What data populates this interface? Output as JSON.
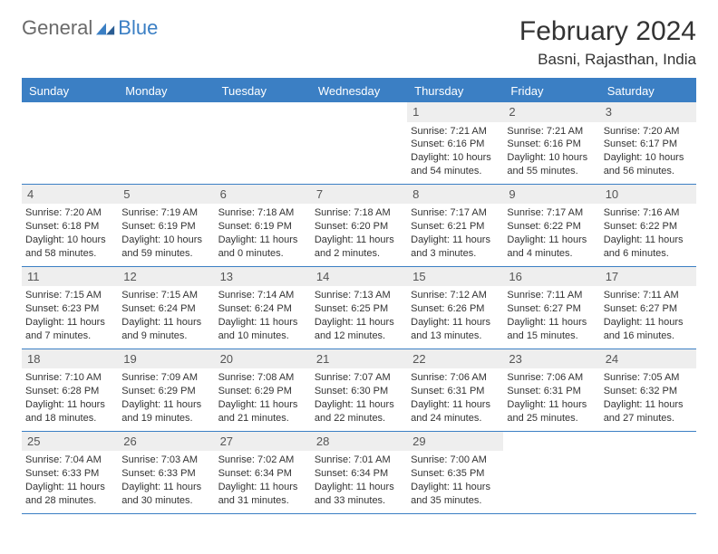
{
  "logo": {
    "part1": "General",
    "part2": "Blue"
  },
  "title": "February 2024",
  "location": "Basni, Rajasthan, India",
  "headers": [
    "Sunday",
    "Monday",
    "Tuesday",
    "Wednesday",
    "Thursday",
    "Friday",
    "Saturday"
  ],
  "colors": {
    "brand": "#3b7fc4",
    "gray": "#6a6a6a",
    "daybg": "#eeeeee"
  },
  "weeks": [
    [
      null,
      null,
      null,
      null,
      {
        "n": "1",
        "sr": "7:21 AM",
        "ss": "6:16 PM",
        "dl": "10 hours and 54 minutes."
      },
      {
        "n": "2",
        "sr": "7:21 AM",
        "ss": "6:16 PM",
        "dl": "10 hours and 55 minutes."
      },
      {
        "n": "3",
        "sr": "7:20 AM",
        "ss": "6:17 PM",
        "dl": "10 hours and 56 minutes."
      }
    ],
    [
      {
        "n": "4",
        "sr": "7:20 AM",
        "ss": "6:18 PM",
        "dl": "10 hours and 58 minutes."
      },
      {
        "n": "5",
        "sr": "7:19 AM",
        "ss": "6:19 PM",
        "dl": "10 hours and 59 minutes."
      },
      {
        "n": "6",
        "sr": "7:18 AM",
        "ss": "6:19 PM",
        "dl": "11 hours and 0 minutes."
      },
      {
        "n": "7",
        "sr": "7:18 AM",
        "ss": "6:20 PM",
        "dl": "11 hours and 2 minutes."
      },
      {
        "n": "8",
        "sr": "7:17 AM",
        "ss": "6:21 PM",
        "dl": "11 hours and 3 minutes."
      },
      {
        "n": "9",
        "sr": "7:17 AM",
        "ss": "6:22 PM",
        "dl": "11 hours and 4 minutes."
      },
      {
        "n": "10",
        "sr": "7:16 AM",
        "ss": "6:22 PM",
        "dl": "11 hours and 6 minutes."
      }
    ],
    [
      {
        "n": "11",
        "sr": "7:15 AM",
        "ss": "6:23 PM",
        "dl": "11 hours and 7 minutes."
      },
      {
        "n": "12",
        "sr": "7:15 AM",
        "ss": "6:24 PM",
        "dl": "11 hours and 9 minutes."
      },
      {
        "n": "13",
        "sr": "7:14 AM",
        "ss": "6:24 PM",
        "dl": "11 hours and 10 minutes."
      },
      {
        "n": "14",
        "sr": "7:13 AM",
        "ss": "6:25 PM",
        "dl": "11 hours and 12 minutes."
      },
      {
        "n": "15",
        "sr": "7:12 AM",
        "ss": "6:26 PM",
        "dl": "11 hours and 13 minutes."
      },
      {
        "n": "16",
        "sr": "7:11 AM",
        "ss": "6:27 PM",
        "dl": "11 hours and 15 minutes."
      },
      {
        "n": "17",
        "sr": "7:11 AM",
        "ss": "6:27 PM",
        "dl": "11 hours and 16 minutes."
      }
    ],
    [
      {
        "n": "18",
        "sr": "7:10 AM",
        "ss": "6:28 PM",
        "dl": "11 hours and 18 minutes."
      },
      {
        "n": "19",
        "sr": "7:09 AM",
        "ss": "6:29 PM",
        "dl": "11 hours and 19 minutes."
      },
      {
        "n": "20",
        "sr": "7:08 AM",
        "ss": "6:29 PM",
        "dl": "11 hours and 21 minutes."
      },
      {
        "n": "21",
        "sr": "7:07 AM",
        "ss": "6:30 PM",
        "dl": "11 hours and 22 minutes."
      },
      {
        "n": "22",
        "sr": "7:06 AM",
        "ss": "6:31 PM",
        "dl": "11 hours and 24 minutes."
      },
      {
        "n": "23",
        "sr": "7:06 AM",
        "ss": "6:31 PM",
        "dl": "11 hours and 25 minutes."
      },
      {
        "n": "24",
        "sr": "7:05 AM",
        "ss": "6:32 PM",
        "dl": "11 hours and 27 minutes."
      }
    ],
    [
      {
        "n": "25",
        "sr": "7:04 AM",
        "ss": "6:33 PM",
        "dl": "11 hours and 28 minutes."
      },
      {
        "n": "26",
        "sr": "7:03 AM",
        "ss": "6:33 PM",
        "dl": "11 hours and 30 minutes."
      },
      {
        "n": "27",
        "sr": "7:02 AM",
        "ss": "6:34 PM",
        "dl": "11 hours and 31 minutes."
      },
      {
        "n": "28",
        "sr": "7:01 AM",
        "ss": "6:34 PM",
        "dl": "11 hours and 33 minutes."
      },
      {
        "n": "29",
        "sr": "7:00 AM",
        "ss": "6:35 PM",
        "dl": "11 hours and 35 minutes."
      },
      null,
      null
    ]
  ],
  "labels": {
    "sunrise": "Sunrise: ",
    "sunset": "Sunset: ",
    "daylight": "Daylight: "
  }
}
